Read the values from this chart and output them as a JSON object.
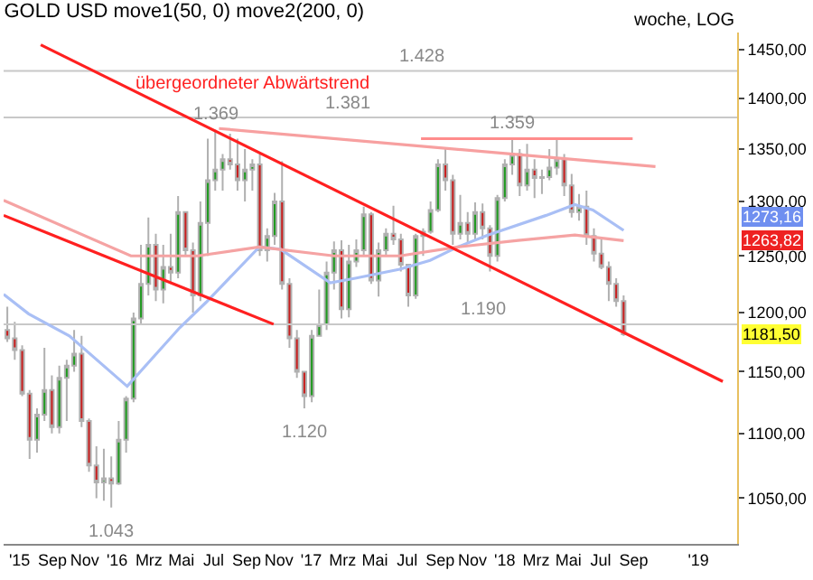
{
  "chart_data": {
    "type": "candlestick",
    "title": "GOLD USD move1(50, 0) move2(200, 0)",
    "x": [
      "2015-06-08",
      "2015-06-22",
      "2015-07-06",
      "2015-07-20",
      "2015-08-03",
      "2015-08-17",
      "2015-08-31",
      "2015-09-14",
      "2015-09-28",
      "2015-10-12",
      "2015-10-26",
      "2015-11-09",
      "2015-11-23",
      "2015-12-07",
      "2015-12-21",
      "2016-01-04",
      "2016-01-18",
      "2016-02-01",
      "2016-02-15",
      "2016-02-29",
      "2016-03-14",
      "2016-03-28",
      "2016-04-11",
      "2016-04-25",
      "2016-05-09",
      "2016-05-23",
      "2016-06-06",
      "2016-06-20",
      "2016-07-04",
      "2016-07-18",
      "2016-08-01",
      "2016-08-15",
      "2016-08-29",
      "2016-09-12",
      "2016-09-26",
      "2016-10-10",
      "2016-10-24",
      "2016-11-07",
      "2016-11-21",
      "2016-12-05",
      "2016-12-19",
      "2017-01-02",
      "2017-01-16",
      "2017-01-30",
      "2017-02-13",
      "2017-02-27",
      "2017-03-13",
      "2017-03-27",
      "2017-04-10",
      "2017-04-24",
      "2017-05-08",
      "2017-05-22",
      "2017-06-05",
      "2017-06-19",
      "2017-07-03",
      "2017-07-17",
      "2017-07-31",
      "2017-08-14",
      "2017-08-28",
      "2017-09-11",
      "2017-09-25",
      "2017-10-09",
      "2017-10-23",
      "2017-11-06",
      "2017-11-20",
      "2017-12-04",
      "2017-12-18",
      "2018-01-01",
      "2018-01-15",
      "2018-01-29",
      "2018-02-12",
      "2018-02-26",
      "2018-03-12",
      "2018-03-26",
      "2018-04-09",
      "2018-04-23",
      "2018-05-07",
      "2018-05-21",
      "2018-06-04",
      "2018-06-18",
      "2018-07-02",
      "2018-07-16",
      "2018-07-30",
      "2018-08-13"
    ],
    "ohlc": [
      [
        1185,
        1205,
        1175,
        1178
      ],
      [
        1178,
        1192,
        1160,
        1168
      ],
      [
        1168,
        1172,
        1130,
        1132
      ],
      [
        1132,
        1135,
        1080,
        1095
      ],
      [
        1095,
        1120,
        1085,
        1115
      ],
      [
        1115,
        1170,
        1110,
        1135
      ],
      [
        1135,
        1147,
        1100,
        1105
      ],
      [
        1105,
        1155,
        1100,
        1145
      ],
      [
        1145,
        1160,
        1110,
        1155
      ],
      [
        1155,
        1185,
        1150,
        1165
      ],
      [
        1165,
        1180,
        1105,
        1110
      ],
      [
        1110,
        1112,
        1070,
        1075
      ],
      [
        1075,
        1090,
        1050,
        1062
      ],
      [
        1062,
        1088,
        1048,
        1065
      ],
      [
        1065,
        1082,
        1043,
        1061
      ],
      [
        1061,
        1110,
        1060,
        1095
      ],
      [
        1095,
        1130,
        1085,
        1128
      ],
      [
        1128,
        1200,
        1125,
        1195
      ],
      [
        1195,
        1260,
        1190,
        1225
      ],
      [
        1225,
        1285,
        1215,
        1260
      ],
      [
        1260,
        1270,
        1210,
        1220
      ],
      [
        1220,
        1260,
        1208,
        1240
      ],
      [
        1240,
        1270,
        1225,
        1235
      ],
      [
        1235,
        1305,
        1230,
        1290
      ],
      [
        1290,
        1290,
        1250,
        1255
      ],
      [
        1255,
        1262,
        1200,
        1215
      ],
      [
        1215,
        1300,
        1210,
        1280
      ],
      [
        1280,
        1360,
        1250,
        1320
      ],
      [
        1320,
        1369,
        1310,
        1330
      ],
      [
        1330,
        1345,
        1310,
        1340
      ],
      [
        1340,
        1365,
        1330,
        1335
      ],
      [
        1335,
        1360,
        1310,
        1320
      ],
      [
        1320,
        1350,
        1300,
        1330
      ],
      [
        1330,
        1340,
        1310,
        1335
      ],
      [
        1335,
        1345,
        1250,
        1255
      ],
      [
        1255,
        1275,
        1245,
        1268
      ],
      [
        1268,
        1308,
        1260,
        1300
      ],
      [
        1300,
        1338,
        1220,
        1225
      ],
      [
        1225,
        1230,
        1170,
        1178
      ],
      [
        1178,
        1185,
        1145,
        1150
      ],
      [
        1150,
        1150,
        1120,
        1130
      ],
      [
        1130,
        1185,
        1125,
        1180
      ],
      [
        1180,
        1220,
        1180,
        1190
      ],
      [
        1190,
        1245,
        1185,
        1235
      ],
      [
        1235,
        1263,
        1220,
        1255
      ],
      [
        1255,
        1264,
        1195,
        1203
      ],
      [
        1203,
        1260,
        1196,
        1245
      ],
      [
        1245,
        1265,
        1240,
        1255
      ],
      [
        1255,
        1295,
        1250,
        1288
      ],
      [
        1288,
        1290,
        1225,
        1228
      ],
      [
        1228,
        1262,
        1214,
        1255
      ],
      [
        1255,
        1275,
        1250,
        1270
      ],
      [
        1270,
        1296,
        1260,
        1265
      ],
      [
        1265,
        1270,
        1236,
        1242
      ],
      [
        1242,
        1242,
        1205,
        1215
      ],
      [
        1215,
        1270,
        1212,
        1268
      ],
      [
        1268,
        1275,
        1250,
        1272
      ],
      [
        1272,
        1300,
        1270,
        1292
      ],
      [
        1292,
        1340,
        1290,
        1335
      ],
      [
        1335,
        1351,
        1310,
        1320
      ],
      [
        1320,
        1325,
        1260,
        1270
      ],
      [
        1270,
        1306,
        1265,
        1280
      ],
      [
        1280,
        1290,
        1262,
        1270
      ],
      [
        1270,
        1299,
        1265,
        1290
      ],
      [
        1290,
        1298,
        1265,
        1275
      ],
      [
        1275,
        1278,
        1236,
        1250
      ],
      [
        1250,
        1306,
        1245,
        1303
      ],
      [
        1303,
        1340,
        1300,
        1335
      ],
      [
        1335,
        1359,
        1325,
        1345
      ],
      [
        1345,
        1350,
        1305,
        1315
      ],
      [
        1315,
        1355,
        1310,
        1330
      ],
      [
        1330,
        1340,
        1303,
        1322
      ],
      [
        1322,
        1330,
        1307,
        1323
      ],
      [
        1323,
        1350,
        1320,
        1332
      ],
      [
        1332,
        1359,
        1325,
        1340
      ],
      [
        1340,
        1345,
        1305,
        1315
      ],
      [
        1315,
        1326,
        1285,
        1290
      ],
      [
        1290,
        1307,
        1282,
        1295
      ],
      [
        1295,
        1310,
        1260,
        1268
      ],
      [
        1268,
        1275,
        1245,
        1252
      ],
      [
        1252,
        1265,
        1238,
        1240
      ],
      [
        1240,
        1245,
        1210,
        1225
      ],
      [
        1225,
        1230,
        1205,
        1210
      ],
      [
        1210,
        1215,
        1180,
        1181.5
      ]
    ],
    "series": [
      {
        "type": "line",
        "color": "#a9bff5",
        "x": [
          "2015-06-01",
          "2015-07-18",
          "2015-10-03",
          "2016-01-20",
          "2016-04-28",
          "2016-06-17",
          "2016-09-25",
          "2016-11-04",
          "2017-02-06",
          "2017-03-25",
          "2017-06-17",
          "2017-08-13",
          "2017-10-04",
          "2017-12-01",
          "2018-03-20",
          "2018-05-13",
          "2018-06-16",
          "2018-08-13"
        ],
        "values": [
          1216,
          1199,
          1180,
          1138,
          1187,
          1209,
          1258,
          1256,
          1226,
          1230,
          1238,
          1246,
          1258,
          1269,
          1287,
          1297,
          1292,
          1273.16
        ]
      },
      {
        "type": "line",
        "color": "#f5a3a3",
        "x": [
          "2015-06-01",
          "2016-01-27",
          "2016-06-01",
          "2016-09-25",
          "2017-02-13",
          "2017-06-17",
          "2017-10-04",
          "2018-01-26",
          "2018-05-13",
          "2018-08-13"
        ],
        "values": [
          1301,
          1250,
          1250,
          1258,
          1250,
          1250,
          1258,
          1264,
          1269,
          1263.82
        ]
      },
      {
        "type": "line",
        "name": "übergeordneter Abwärtstrend",
        "color": "#ff2020",
        "x": [
          "2015-08-10",
          "2019-02-16"
        ],
        "values": [
          1455,
          1142
        ]
      },
      {
        "type": "line",
        "color": "#ff2020",
        "x": [
          "2015-06-01",
          "2016-10-22"
        ],
        "values": [
          1287,
          1190
        ]
      },
      {
        "type": "line",
        "color": "#f7a0a0",
        "x": [
          "2016-07-11",
          "2018-10-12"
        ],
        "values": [
          1370,
          1333
        ]
      },
      {
        "type": "line",
        "color": "#ff8c8c",
        "x": [
          "2017-07-27",
          "2018-08-30"
        ],
        "values": [
          1360,
          1360
        ]
      }
    ],
    "ref_lines": [
      {
        "axis": "y",
        "value": 1428,
        "label": "1.428",
        "color": "#c8c8c8"
      },
      {
        "axis": "y",
        "value": 1381,
        "label": "1.381",
        "color": "#c8c8c8"
      },
      {
        "axis": "y",
        "value": 1190,
        "label": "1.190",
        "color": "#c8c8c8"
      }
    ],
    "annotations": [
      "woche, LOG",
      "1273,16",
      "1263,82",
      "1181,50",
      {
        "text": "1.369",
        "x": "2016-07-04",
        "y": 1369
      },
      {
        "text": "1.359",
        "x": "2018-01-15",
        "y": 1359
      },
      {
        "text": "1.120",
        "x": "2016-12-19",
        "y": 1120
      },
      {
        "text": "1.043",
        "x": "2015-12-21",
        "y": 1043
      }
    ],
    "xlim": [
      "2015-06-01",
      "2019-03-15"
    ],
    "xticks": [
      {
        "value": "2015-07-01",
        "label": "'15"
      },
      {
        "value": "2015-09-01",
        "label": "Sep"
      },
      {
        "value": "2015-11-01",
        "label": "Nov"
      },
      {
        "value": "2016-01-01",
        "label": "'16"
      },
      {
        "value": "2016-03-01",
        "label": "Mrz"
      },
      {
        "value": "2016-05-01",
        "label": "Mai"
      },
      {
        "value": "2016-07-01",
        "label": "Jul"
      },
      {
        "value": "2016-09-01",
        "label": "Sep"
      },
      {
        "value": "2016-11-01",
        "label": "Nov"
      },
      {
        "value": "2017-01-01",
        "label": "'17"
      },
      {
        "value": "2017-03-01",
        "label": "Mrz"
      },
      {
        "value": "2017-05-01",
        "label": "Mai"
      },
      {
        "value": "2017-07-01",
        "label": "Jul"
      },
      {
        "value": "2017-09-01",
        "label": "Sep"
      },
      {
        "value": "2017-11-01",
        "label": "Nov"
      },
      {
        "value": "2018-01-01",
        "label": "'18"
      },
      {
        "value": "2018-03-01",
        "label": "Mrz"
      },
      {
        "value": "2018-05-01",
        "label": "Mai"
      },
      {
        "value": "2018-07-01",
        "label": "Jul"
      },
      {
        "value": "2018-09-01",
        "label": "Sep"
      },
      {
        "value": "2019-01-01",
        "label": "'19"
      }
    ],
    "ylim": [
      1016,
      1468
    ],
    "yticks": [
      {
        "value": 1050,
        "label": "1050,00"
      },
      {
        "value": 1100,
        "label": "1100,00"
      },
      {
        "value": 1150,
        "label": "1150,00"
      },
      {
        "value": 1200,
        "label": "1200,00"
      },
      {
        "value": 1250,
        "label": "1250,00"
      },
      {
        "value": 1300,
        "label": "1300,00"
      },
      {
        "value": 1350,
        "label": "1350,00"
      },
      {
        "value": 1400,
        "label": "1400,00"
      },
      {
        "value": 1450,
        "label": "1450,00"
      }
    ],
    "log": true,
    "legend": false
  }
}
